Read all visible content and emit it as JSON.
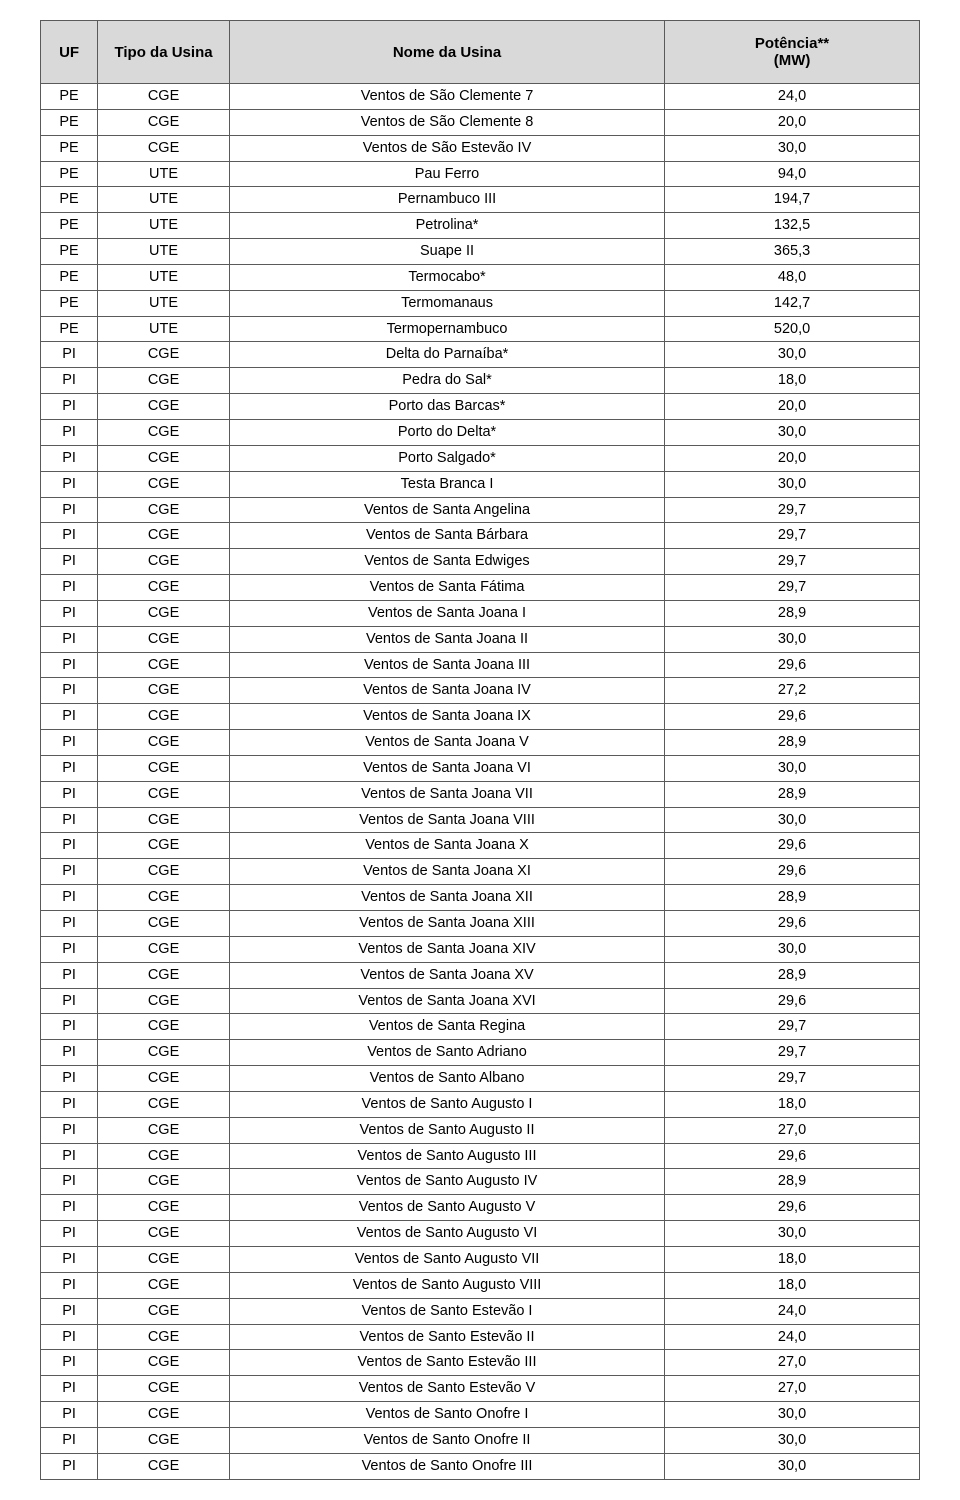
{
  "table": {
    "columns": [
      {
        "key": "uf",
        "label": "UF",
        "width": "6.5%"
      },
      {
        "key": "tipo",
        "label": "Tipo da Usina",
        "width": "15%"
      },
      {
        "key": "nome",
        "label": "Nome da Usina",
        "width": "49.5%"
      },
      {
        "key": "potencia",
        "label": "Potência**\n(MW)",
        "width": "29%"
      }
    ],
    "header_bg": "#d9d9d9",
    "border_color": "#5a5a5a",
    "font_family": "Arial",
    "header_fontsize": 15,
    "cell_fontsize": 14.5,
    "rows": [
      [
        "PE",
        "CGE",
        "Ventos de São Clemente 7",
        "24,0"
      ],
      [
        "PE",
        "CGE",
        "Ventos de São Clemente 8",
        "20,0"
      ],
      [
        "PE",
        "CGE",
        "Ventos de São Estevão IV",
        "30,0"
      ],
      [
        "PE",
        "UTE",
        "Pau Ferro",
        "94,0"
      ],
      [
        "PE",
        "UTE",
        "Pernambuco III",
        "194,7"
      ],
      [
        "PE",
        "UTE",
        "Petrolina*",
        "132,5"
      ],
      [
        "PE",
        "UTE",
        "Suape II",
        "365,3"
      ],
      [
        "PE",
        "UTE",
        "Termocabo*",
        "48,0"
      ],
      [
        "PE",
        "UTE",
        "Termomanaus",
        "142,7"
      ],
      [
        "PE",
        "UTE",
        "Termopernambuco",
        "520,0"
      ],
      [
        "PI",
        "CGE",
        "Delta do Parnaíba*",
        "30,0"
      ],
      [
        "PI",
        "CGE",
        "Pedra do Sal*",
        "18,0"
      ],
      [
        "PI",
        "CGE",
        "Porto das Barcas*",
        "20,0"
      ],
      [
        "PI",
        "CGE",
        "Porto do Delta*",
        "30,0"
      ],
      [
        "PI",
        "CGE",
        "Porto Salgado*",
        "20,0"
      ],
      [
        "PI",
        "CGE",
        "Testa Branca I",
        "30,0"
      ],
      [
        "PI",
        "CGE",
        "Ventos de Santa Angelina",
        "29,7"
      ],
      [
        "PI",
        "CGE",
        "Ventos de Santa Bárbara",
        "29,7"
      ],
      [
        "PI",
        "CGE",
        "Ventos de Santa Edwiges",
        "29,7"
      ],
      [
        "PI",
        "CGE",
        "Ventos de Santa Fátima",
        "29,7"
      ],
      [
        "PI",
        "CGE",
        "Ventos de Santa Joana I",
        "28,9"
      ],
      [
        "PI",
        "CGE",
        "Ventos de Santa Joana II",
        "30,0"
      ],
      [
        "PI",
        "CGE",
        "Ventos de Santa Joana III",
        "29,6"
      ],
      [
        "PI",
        "CGE",
        "Ventos de Santa Joana IV",
        "27,2"
      ],
      [
        "PI",
        "CGE",
        "Ventos de Santa Joana IX",
        "29,6"
      ],
      [
        "PI",
        "CGE",
        "Ventos de Santa Joana V",
        "28,9"
      ],
      [
        "PI",
        "CGE",
        "Ventos de Santa Joana VI",
        "30,0"
      ],
      [
        "PI",
        "CGE",
        "Ventos de Santa Joana VII",
        "28,9"
      ],
      [
        "PI",
        "CGE",
        "Ventos de Santa Joana VIII",
        "30,0"
      ],
      [
        "PI",
        "CGE",
        "Ventos de Santa Joana X",
        "29,6"
      ],
      [
        "PI",
        "CGE",
        "Ventos de Santa Joana XI",
        "29,6"
      ],
      [
        "PI",
        "CGE",
        "Ventos de Santa Joana XII",
        "28,9"
      ],
      [
        "PI",
        "CGE",
        "Ventos de Santa Joana XIII",
        "29,6"
      ],
      [
        "PI",
        "CGE",
        "Ventos de Santa Joana XIV",
        "30,0"
      ],
      [
        "PI",
        "CGE",
        "Ventos de Santa Joana XV",
        "28,9"
      ],
      [
        "PI",
        "CGE",
        "Ventos de Santa Joana XVI",
        "29,6"
      ],
      [
        "PI",
        "CGE",
        "Ventos de Santa Regina",
        "29,7"
      ],
      [
        "PI",
        "CGE",
        "Ventos de Santo Adriano",
        "29,7"
      ],
      [
        "PI",
        "CGE",
        "Ventos de Santo Albano",
        "29,7"
      ],
      [
        "PI",
        "CGE",
        "Ventos de Santo Augusto I",
        "18,0"
      ],
      [
        "PI",
        "CGE",
        "Ventos de Santo Augusto II",
        "27,0"
      ],
      [
        "PI",
        "CGE",
        "Ventos de Santo Augusto III",
        "29,6"
      ],
      [
        "PI",
        "CGE",
        "Ventos de Santo Augusto IV",
        "28,9"
      ],
      [
        "PI",
        "CGE",
        "Ventos de Santo Augusto V",
        "29,6"
      ],
      [
        "PI",
        "CGE",
        "Ventos de Santo Augusto VI",
        "30,0"
      ],
      [
        "PI",
        "CGE",
        "Ventos de Santo Augusto VII",
        "18,0"
      ],
      [
        "PI",
        "CGE",
        "Ventos de Santo Augusto VIII",
        "18,0"
      ],
      [
        "PI",
        "CGE",
        "Ventos de Santo Estevão I",
        "24,0"
      ],
      [
        "PI",
        "CGE",
        "Ventos de Santo Estevão II",
        "24,0"
      ],
      [
        "PI",
        "CGE",
        "Ventos de Santo Estevão III",
        "27,0"
      ],
      [
        "PI",
        "CGE",
        "Ventos de Santo Estevão V",
        "27,0"
      ],
      [
        "PI",
        "CGE",
        "Ventos de Santo Onofre I",
        "30,0"
      ],
      [
        "PI",
        "CGE",
        "Ventos de Santo Onofre II",
        "30,0"
      ],
      [
        "PI",
        "CGE",
        "Ventos de Santo Onofre III",
        "30,0"
      ]
    ]
  }
}
